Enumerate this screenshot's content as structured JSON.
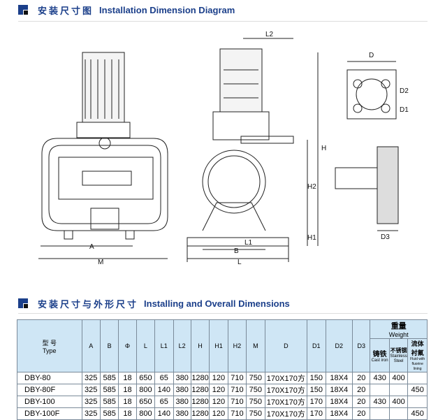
{
  "section1": {
    "title_cn": "安装尺寸图",
    "title_en": "Installation Dimension Diagram"
  },
  "section2": {
    "title_cn": "安装尺寸与外形尺寸",
    "title_en": "Installing and Overall Dimensions"
  },
  "diagram_labels": {
    "A": "A",
    "M": "M",
    "B": "B",
    "L": "L",
    "L1": "L1",
    "L2": "L2",
    "H": "H",
    "H1": "H1",
    "H2": "H2",
    "D": "D",
    "D1": "D1",
    "D2": "D2",
    "D3": "D3"
  },
  "table": {
    "type_cn": "型 号",
    "type_en": "Type",
    "columns": [
      "A",
      "B",
      "Φ",
      "L",
      "L1",
      "L2",
      "H",
      "H1",
      "H2",
      "M",
      "D",
      "D1",
      "D2",
      "D3"
    ],
    "weight_cn": "重量",
    "weight_en": "Weight",
    "weight_cols": [
      {
        "cn": "铸铁",
        "en": "Cast iron"
      },
      {
        "cn": "不锈钢",
        "en": "Stainless Steel"
      },
      {
        "cn": "流体衬氟",
        "en": "Fluid with fluorine lining"
      }
    ],
    "rows": [
      [
        "DBY-80",
        "325",
        "585",
        "18",
        "650",
        "65",
        "380",
        "1280",
        "120",
        "710",
        "750",
        "170X170方",
        "150",
        "18X4",
        "20",
        "430",
        "400",
        ""
      ],
      [
        "DBY-80F",
        "325",
        "585",
        "18",
        "800",
        "140",
        "380",
        "1280",
        "120",
        "710",
        "750",
        "170X170方",
        "150",
        "18X4",
        "20",
        "",
        "",
        "450"
      ],
      [
        "DBY-100",
        "325",
        "585",
        "18",
        "650",
        "65",
        "380",
        "1280",
        "120",
        "710",
        "750",
        "170X170方",
        "170",
        "18X4",
        "20",
        "430",
        "400",
        ""
      ],
      [
        "DBY-100F",
        "325",
        "585",
        "18",
        "800",
        "140",
        "380",
        "1280",
        "120",
        "710",
        "750",
        "170X170方",
        "170",
        "18X4",
        "20",
        "",
        "",
        "450"
      ]
    ]
  }
}
